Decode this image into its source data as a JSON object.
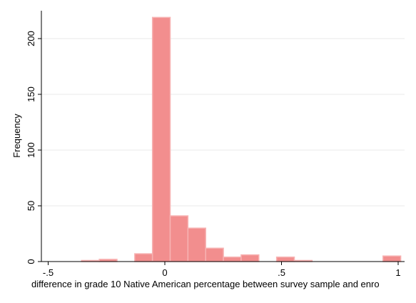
{
  "chart_data": {
    "type": "bar",
    "subtype": "histogram",
    "xlabel": "difference in grade 10 Native American percentage between survey sample and enro",
    "ylabel": "Frequency",
    "xlim": [
      -0.5,
      1.0
    ],
    "ylim": [
      0,
      225
    ],
    "x_ticks": [
      {
        "value": -0.5,
        "label": "-.5"
      },
      {
        "value": 0,
        "label": "0"
      },
      {
        "value": 0.5,
        "label": ".5"
      },
      {
        "value": 1,
        "label": "1"
      }
    ],
    "y_ticks": [
      {
        "value": 0,
        "label": "0"
      },
      {
        "value": 50,
        "label": "50"
      },
      {
        "value": 100,
        "label": "100"
      },
      {
        "value": 150,
        "label": "150"
      },
      {
        "value": 200,
        "label": "200"
      }
    ],
    "grid": true,
    "bin_width": 0.076,
    "bins": [
      {
        "start": -0.357,
        "count": 1
      },
      {
        "start": -0.281,
        "count": 2
      },
      {
        "start": -0.205,
        "count": 0
      },
      {
        "start": -0.129,
        "count": 7
      },
      {
        "start": -0.053,
        "count": 219
      },
      {
        "start": 0.023,
        "count": 41
      },
      {
        "start": 0.099,
        "count": 30
      },
      {
        "start": 0.175,
        "count": 12
      },
      {
        "start": 0.251,
        "count": 4
      },
      {
        "start": 0.327,
        "count": 6
      },
      {
        "start": 0.403,
        "count": 0
      },
      {
        "start": 0.479,
        "count": 4
      },
      {
        "start": 0.555,
        "count": 1
      },
      {
        "start": 0.631,
        "count": 0
      },
      {
        "start": 0.707,
        "count": 0
      },
      {
        "start": 0.783,
        "count": 0
      },
      {
        "start": 0.859,
        "count": 0
      },
      {
        "start": 0.935,
        "count": 5
      }
    ],
    "colors": {
      "bar_fill": "#f28e8e",
      "bar_stroke": "#f7b3b3",
      "grid": "#eaeaea",
      "axis": "#000000"
    }
  }
}
